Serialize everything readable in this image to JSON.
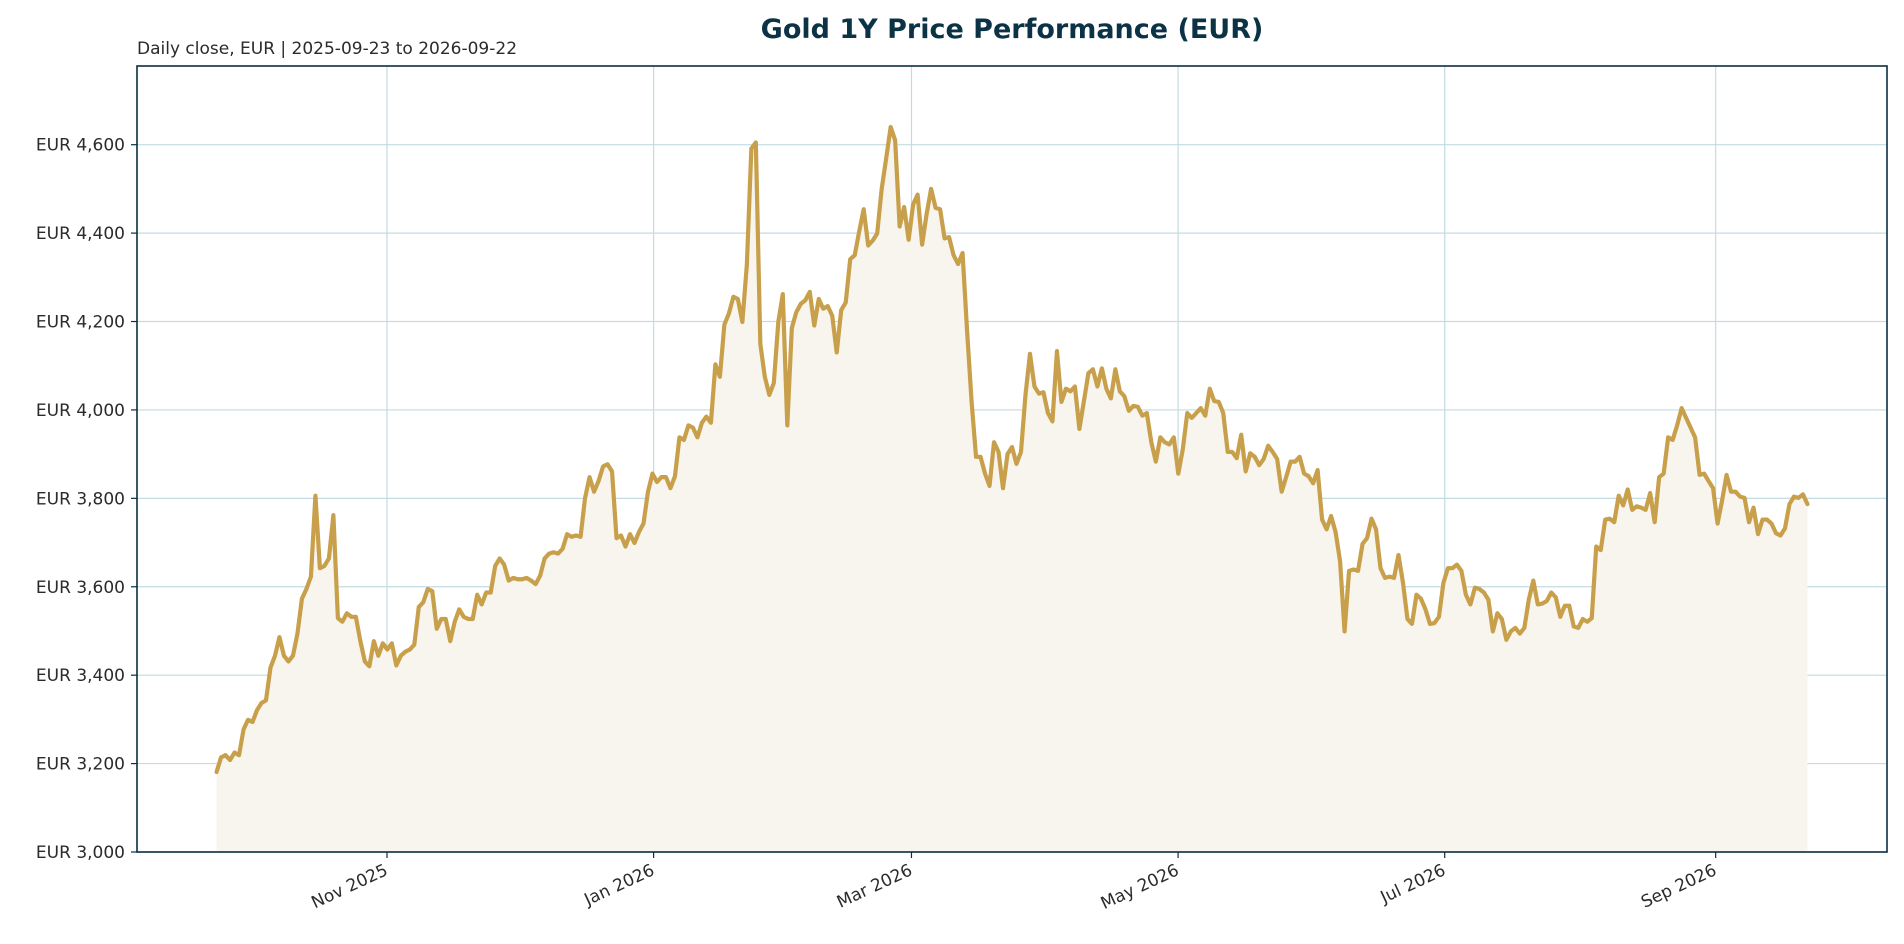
{
  "chart_data": {
    "type": "line",
    "title": "Gold 1Y Price Performance (EUR)",
    "subtitle": "Daily close, EUR | 2025-09-23 to 2026-09-22",
    "x_range": [
      "2025-09-23",
      "2026-09-22"
    ],
    "series": [
      {
        "name": "Gold",
        "color": "#c8a04b",
        "fill": "#f8f4ee",
        "values": [
          3181,
          3214,
          3219,
          3208,
          3225,
          3219,
          3277,
          3299,
          3294,
          3321,
          3337,
          3343,
          3417,
          3444,
          3486,
          3444,
          3431,
          3444,
          3494,
          3573,
          3595,
          3623,
          3806,
          3642,
          3647,
          3664,
          3762,
          3529,
          3521,
          3540,
          3532,
          3532,
          3477,
          3431,
          3420,
          3477,
          3444,
          3472,
          3458,
          3472,
          3422,
          3444,
          3453,
          3458,
          3469,
          3554,
          3565,
          3595,
          3590,
          3505,
          3527,
          3527,
          3477,
          3521,
          3549,
          3532,
          3527,
          3527,
          3582,
          3560,
          3587,
          3587,
          3647,
          3664,
          3650,
          3614,
          3620,
          3617,
          3617,
          3620,
          3614,
          3606,
          3625,
          3664,
          3675,
          3678,
          3675,
          3686,
          3719,
          3713,
          3716,
          3713,
          3801,
          3848,
          3815,
          3839,
          3872,
          3877,
          3861,
          3710,
          3716,
          3691,
          3719,
          3699,
          3724,
          3743,
          3815,
          3856,
          3837,
          3848,
          3848,
          3823,
          3850,
          3938,
          3932,
          3965,
          3960,
          3938,
          3971,
          3985,
          3971,
          4103,
          4075,
          4193,
          4218,
          4256,
          4251,
          4199,
          4328,
          4591,
          4605,
          4149,
          4075,
          4034,
          4061,
          4199,
          4262,
          3965,
          4185,
          4221,
          4240,
          4248,
          4267,
          4191,
          4251,
          4229,
          4235,
          4213,
          4130,
          4226,
          4243,
          4341,
          4350,
          4404,
          4454,
          4372,
          4383,
          4399,
          4500,
          4569,
          4640,
          4610,
          4415,
          4459,
          4385,
          4465,
          4487,
          4374,
          4443,
          4500,
          4457,
          4454,
          4388,
          4391,
          4350,
          4330,
          4355,
          4180,
          4020,
          3894,
          3894,
          3856,
          3828,
          3927,
          3905,
          3823,
          3900,
          3916,
          3878,
          3905,
          4034,
          4127,
          4053,
          4037,
          4040,
          3993,
          3974,
          4133,
          4018,
          4048,
          4042,
          4053,
          3957,
          4020,
          4083,
          4092,
          4053,
          4094,
          4048,
          4026,
          4092,
          4042,
          4031,
          3998,
          4009,
          4007,
          3987,
          3993,
          3927,
          3883,
          3938,
          3927,
          3922,
          3938,
          3856,
          3911,
          3993,
          3982,
          3993,
          4004,
          3987,
          4048,
          4020,
          4018,
          3993,
          3905,
          3905,
          3891,
          3944,
          3861,
          3902,
          3894,
          3875,
          3889,
          3919,
          3905,
          3889,
          3815,
          3848,
          3883,
          3883,
          3894,
          3856,
          3850,
          3834,
          3864,
          3752,
          3730,
          3760,
          3724,
          3658,
          3499,
          3636,
          3639,
          3636,
          3697,
          3710,
          3754,
          3730,
          3642,
          3620,
          3623,
          3620,
          3672,
          3609,
          3527,
          3516,
          3582,
          3573,
          3549,
          3516,
          3518,
          3532,
          3609,
          3642,
          3642,
          3650,
          3636,
          3582,
          3560,
          3598,
          3595,
          3587,
          3571,
          3499,
          3540,
          3527,
          3480,
          3499,
          3507,
          3494,
          3507,
          3571,
          3614,
          3560,
          3562,
          3568,
          3587,
          3576,
          3532,
          3557,
          3557,
          3510,
          3507,
          3527,
          3521,
          3529,
          3691,
          3683,
          3752,
          3754,
          3746,
          3806,
          3784,
          3820,
          3774,
          3782,
          3779,
          3774,
          3812,
          3746,
          3848,
          3856,
          3938,
          3932,
          3965,
          4004,
          3982,
          3960,
          3938,
          3853,
          3856,
          3839,
          3823,
          3743,
          3795,
          3853,
          3815,
          3815,
          3804,
          3801,
          3746,
          3779,
          3719,
          3752,
          3752,
          3743,
          3721,
          3716,
          3732,
          3787,
          3804,
          3801,
          3809,
          3787
        ]
      }
    ],
    "ylim": [
      3000,
      4778
    ],
    "yticks": [
      {
        "value": 3000,
        "label": "EUR 3,000"
      },
      {
        "value": 3200,
        "label": "EUR 3,200"
      },
      {
        "value": 3400,
        "label": "EUR 3,400"
      },
      {
        "value": 3600,
        "label": "EUR 3,600"
      },
      {
        "value": 3800,
        "label": "EUR 3,800"
      },
      {
        "value": 4000,
        "label": "EUR 4,000"
      },
      {
        "value": 4200,
        "label": "EUR 4,200"
      },
      {
        "value": 4400,
        "label": "EUR 4,400"
      },
      {
        "value": 4600,
        "label": "EUR 4,600"
      }
    ],
    "xticks": [
      {
        "value": "2025-11",
        "label": "Nov 2025"
      },
      {
        "value": "2026-01",
        "label": "Jan 2026"
      },
      {
        "value": "2026-03",
        "label": "Mar 2026"
      },
      {
        "value": "2026-05",
        "label": "May 2026"
      },
      {
        "value": "2026-07",
        "label": "Jul 2026"
      },
      {
        "value": "2026-09",
        "label": "Sep 2026"
      }
    ],
    "grid": true
  }
}
